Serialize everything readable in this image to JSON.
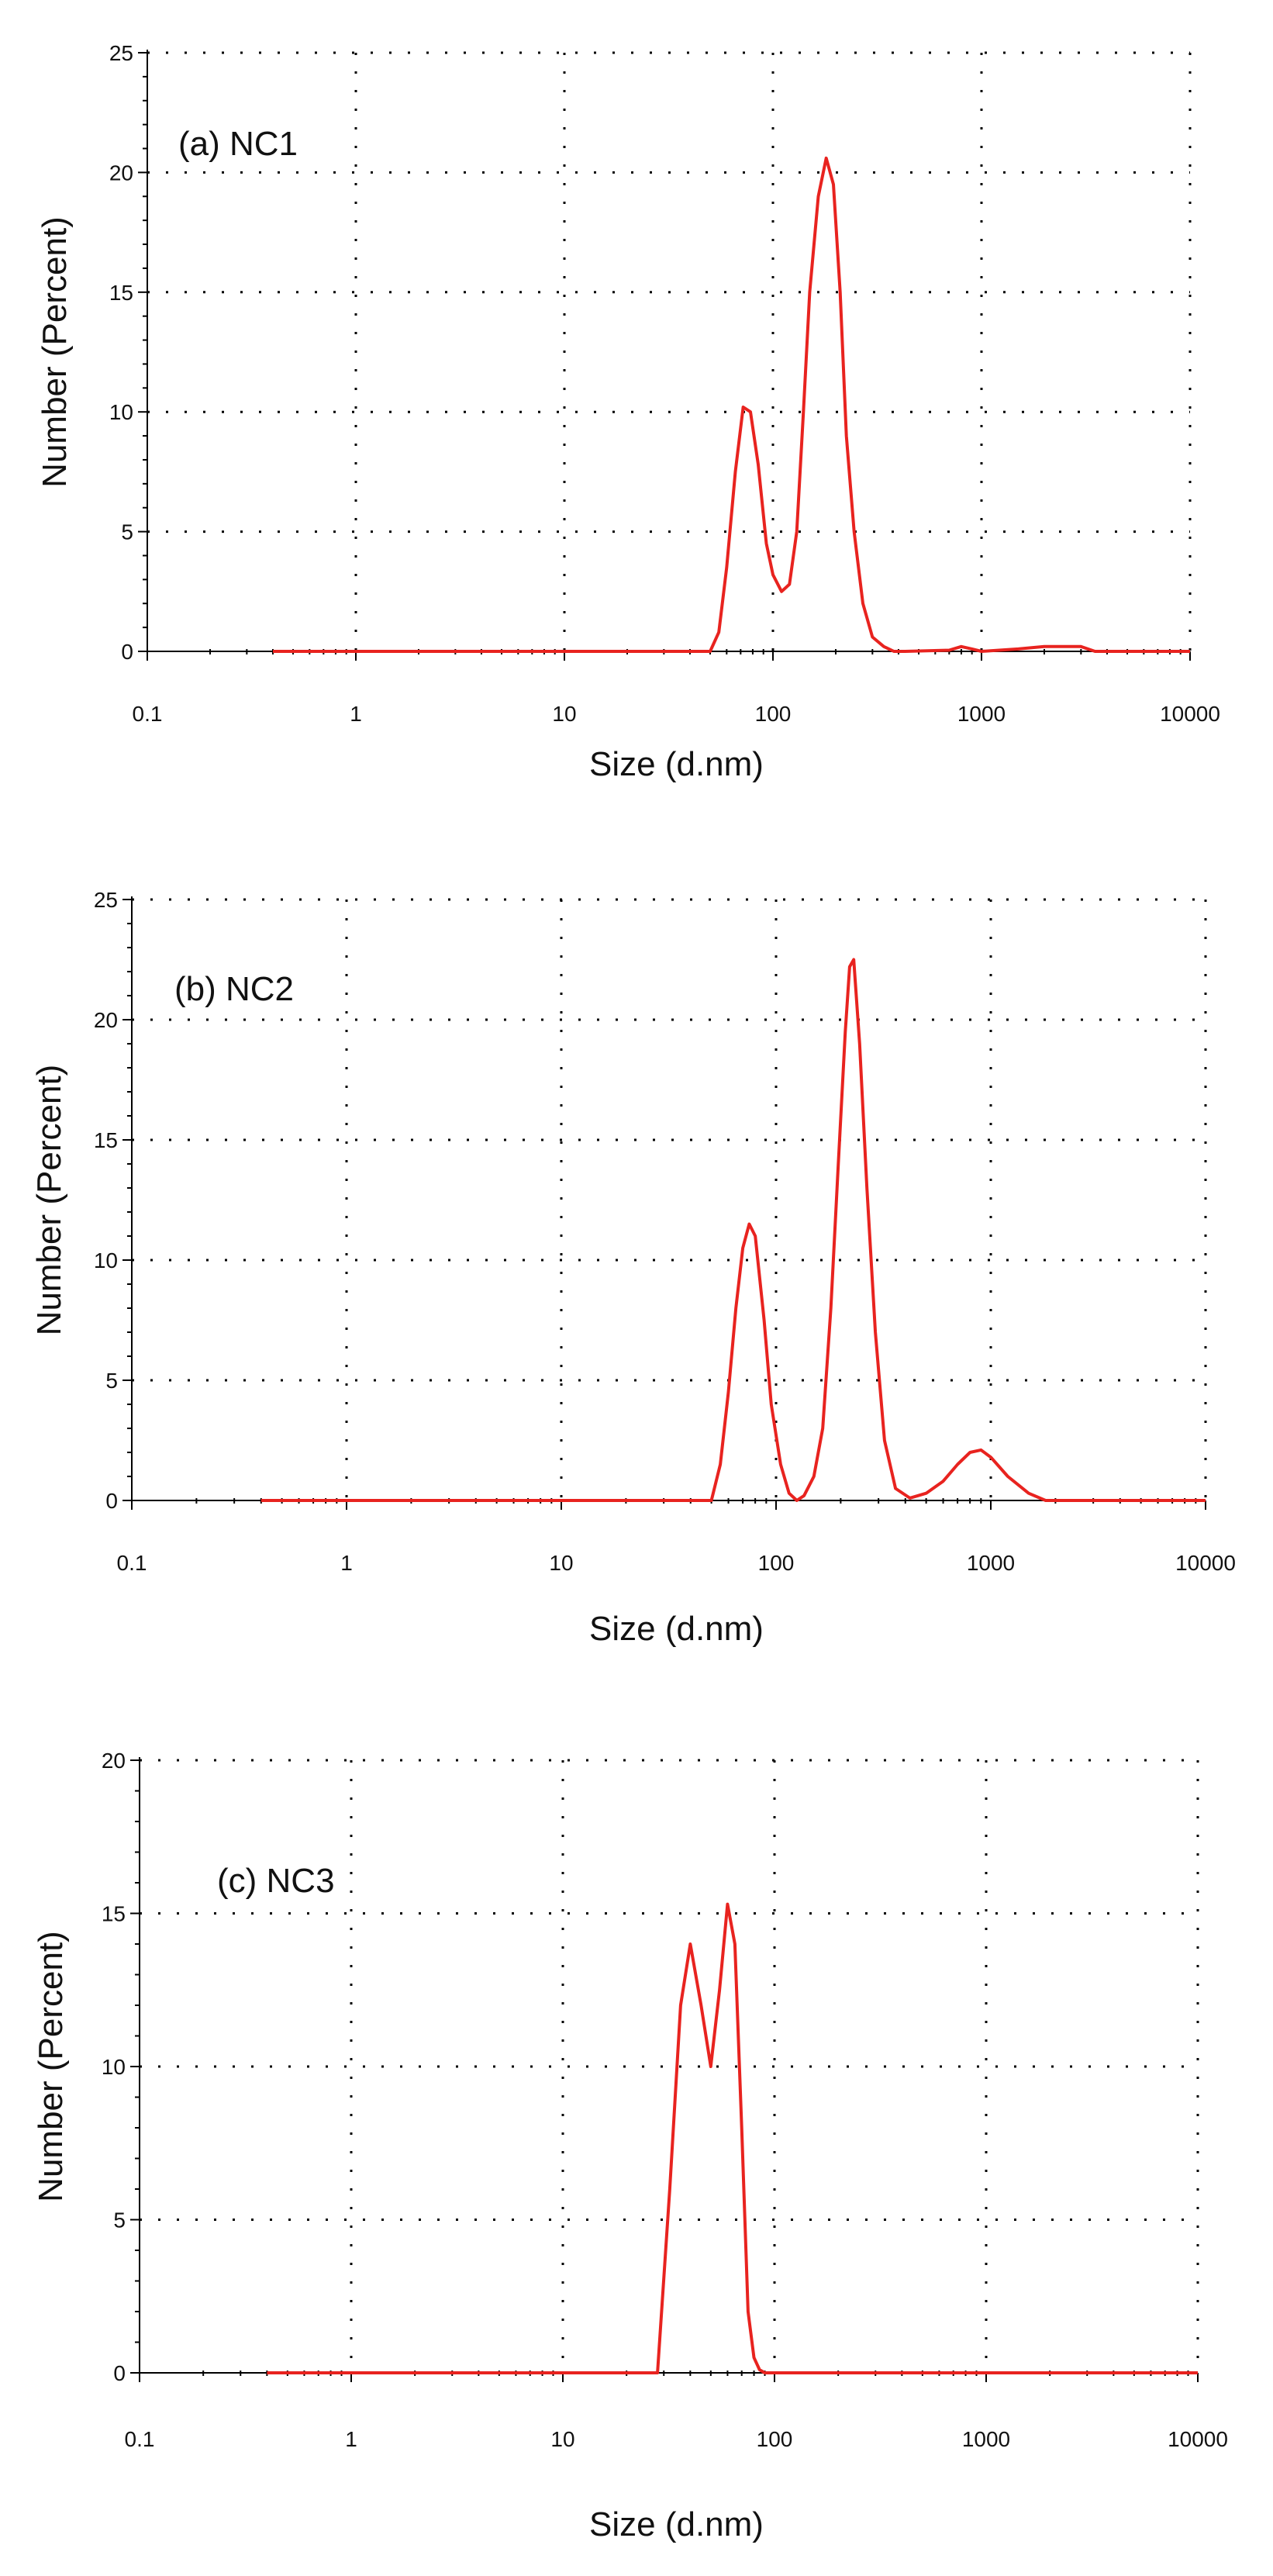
{
  "chart_data": [
    {
      "type": "line",
      "panel_label": "(a) NC1",
      "xlabel": "Size (d.nm)",
      "ylabel": "Number (Percent)",
      "xscale": "log",
      "xlim": [
        0.1,
        10000
      ],
      "ylim": [
        0,
        25
      ],
      "xticks": [
        "0.1",
        "1",
        "10",
        "100",
        "1000",
        "10000"
      ],
      "yticks": [
        "0",
        "5",
        "10",
        "15",
        "20",
        "25"
      ],
      "grid": true,
      "line_color": "#e8231f",
      "series": [
        {
          "name": "NC1",
          "x": [
            0.4,
            50,
            55,
            60,
            66,
            72,
            78,
            85,
            93,
            100,
            110,
            120,
            130,
            140,
            150,
            165,
            180,
            195,
            210,
            225,
            245,
            270,
            300,
            340,
            380,
            430,
            700,
            800,
            900,
            1000,
            1500,
            2000,
            2500,
            3000,
            3500,
            10000
          ],
          "y": [
            0,
            0,
            0.8,
            3.5,
            7.5,
            10.2,
            10.0,
            7.8,
            4.5,
            3.2,
            2.5,
            2.8,
            5.0,
            10.0,
            15.0,
            19.0,
            20.6,
            19.5,
            15.0,
            9.0,
            5.0,
            2.0,
            0.6,
            0.2,
            0,
            0,
            0.05,
            0.2,
            0.1,
            0,
            0.1,
            0.2,
            0.2,
            0.2,
            0,
            0
          ]
        }
      ]
    },
    {
      "type": "line",
      "panel_label": "(b) NC2",
      "xlabel": "Size (d.nm)",
      "ylabel": "Number (Percent)",
      "xscale": "log",
      "xlim": [
        0.1,
        10000
      ],
      "ylim": [
        0,
        25
      ],
      "xticks": [
        "0.1",
        "1",
        "10",
        "100",
        "1000",
        "10000"
      ],
      "yticks": [
        "0",
        "5",
        "10",
        "15",
        "20",
        "25"
      ],
      "grid": true,
      "line_color": "#e8231f",
      "series": [
        {
          "name": "NC2",
          "x": [
            0.4,
            50,
            55,
            60,
            65,
            70,
            75,
            80,
            88,
            95,
            105,
            115,
            125,
            135,
            150,
            165,
            180,
            195,
            210,
            220,
            230,
            245,
            265,
            290,
            320,
            360,
            420,
            500,
            600,
            700,
            800,
            900,
            1000,
            1200,
            1500,
            1800,
            10000
          ],
          "y": [
            0,
            0,
            1.5,
            4.5,
            8.0,
            10.5,
            11.5,
            11.0,
            7.5,
            4.0,
            1.5,
            0.3,
            0,
            0.2,
            1.0,
            3.0,
            8.0,
            14.0,
            19.5,
            22.2,
            22.5,
            19.0,
            13.0,
            7.0,
            2.5,
            0.5,
            0.1,
            0.3,
            0.8,
            1.5,
            2.0,
            2.1,
            1.8,
            1.0,
            0.3,
            0,
            0
          ]
        }
      ]
    },
    {
      "type": "line",
      "panel_label": "(c) NC3",
      "xlabel": "Size (d.nm)",
      "ylabel": "Number (Percent)",
      "xscale": "log",
      "xlim": [
        0.1,
        10000
      ],
      "ylim": [
        0,
        20
      ],
      "xticks": [
        "0.1",
        "1",
        "10",
        "100",
        "1000",
        "10000"
      ],
      "yticks": [
        "0",
        "5",
        "10",
        "15",
        "20"
      ],
      "grid": true,
      "line_color": "#e8231f",
      "series": [
        {
          "name": "NC3",
          "x": [
            0.4,
            28,
            32,
            36,
            40,
            45,
            50,
            55,
            60,
            65,
            70,
            75,
            80,
            85,
            90,
            10000
          ],
          "y": [
            0,
            0,
            6.0,
            12.0,
            14.0,
            12.0,
            10.0,
            12.5,
            15.3,
            14.0,
            8.0,
            2.0,
            0.5,
            0.1,
            0,
            0
          ]
        }
      ]
    }
  ]
}
